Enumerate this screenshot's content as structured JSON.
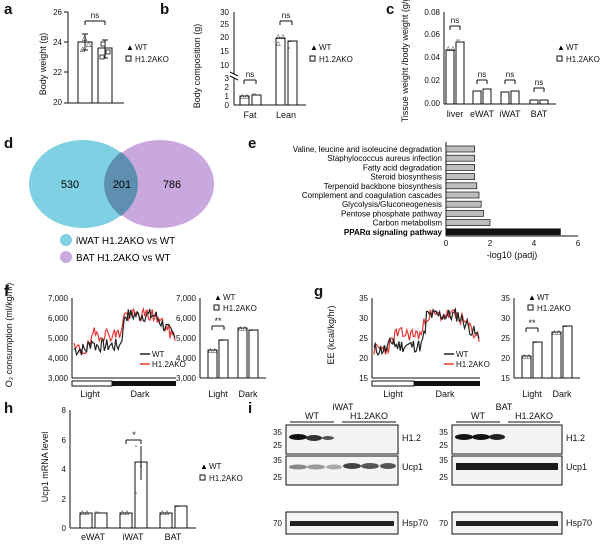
{
  "panels": {
    "a": "a",
    "b": "b",
    "c": "c",
    "d": "d",
    "e": "e",
    "f": "f",
    "g": "g",
    "h": "h",
    "i": "i"
  },
  "legend": {
    "wt": "WT",
    "ko": "H1.2AKO"
  },
  "sig": {
    "ns": "ns",
    "two_star": "**",
    "one_star": "*"
  },
  "chart_data": [
    {
      "id": "a",
      "type": "bar",
      "ylabel": "Body weight (g)",
      "ylim": [
        20,
        26
      ],
      "yticks": [
        "20",
        "22",
        "24",
        "26"
      ],
      "categories": [
        "WT",
        "H1.2AKO"
      ],
      "values": [
        24.0,
        23.6
      ],
      "annotation": "ns"
    },
    {
      "id": "b",
      "type": "bar",
      "ylabel": "Body composition (g)",
      "yticks": [
        "0",
        "1",
        "2",
        "3",
        "10",
        "15",
        "20",
        "25",
        "30"
      ],
      "categories": [
        "Fat",
        "Lean"
      ],
      "series": [
        {
          "name": "WT",
          "values": [
            1.0,
            19.0
          ]
        },
        {
          "name": "H1.2AKO",
          "values": [
            1.1,
            18.0
          ]
        }
      ],
      "annotation": "ns"
    },
    {
      "id": "c",
      "type": "bar",
      "ylabel": "Tissue weight /body weight (g/g)",
      "ylim": [
        0,
        0.08
      ],
      "yticks": [
        "0.00",
        "0.02",
        "0.04",
        "0.06",
        "0.08"
      ],
      "categories": [
        "liver",
        "eWAT",
        "iWAT",
        "BAT"
      ],
      "series": [
        {
          "name": "WT",
          "values": [
            0.047,
            0.011,
            0.01,
            0.003
          ]
        },
        {
          "name": "H1.2AKO",
          "values": [
            0.054,
            0.013,
            0.011,
            0.003
          ]
        }
      ],
      "annotation": "ns"
    },
    {
      "id": "d",
      "type": "venn",
      "sets": [
        {
          "label": "iWAT H1.2AKO vs WT",
          "only": "530",
          "color": "#7fd0e3"
        },
        {
          "label": "BAT H1.2AKO vs WT",
          "only": "786",
          "color": "#c9a9dd"
        }
      ],
      "overlap": "201"
    },
    {
      "id": "e",
      "type": "bar",
      "xlabel": "-log10 (padj)",
      "xlim": [
        0,
        6
      ],
      "xticks": [
        "0",
        "2",
        "4",
        "6"
      ],
      "categories": [
        "Valine, leucine and isoleucine degradation",
        "Staphylococcus aureus infection",
        "Fatty acid degradation",
        "Steroid biosynthesis",
        "Terpenoid backbone biosynthesis",
        "Complement and coagulation cascades",
        "Glycolysis/Gluconeogenesis",
        "Pentose phosphate pathway",
        "Carbon metabolism",
        "PPARα signaling pathway"
      ],
      "values": [
        1.3,
        1.3,
        1.3,
        1.3,
        1.4,
        1.5,
        1.6,
        1.7,
        2.0,
        5.2
      ],
      "bold_index": 9
    },
    {
      "id": "f",
      "type": "line",
      "ylabel": "O₂ consumption (ml/kg/hr)",
      "ylim": [
        3000,
        7000
      ],
      "yticks": [
        "3,000",
        "4,000",
        "5,000",
        "6,000",
        "7,000"
      ],
      "phases": [
        "Light",
        "Dark"
      ],
      "bar_categories": [
        "Light",
        "Dark"
      ],
      "bar_series": [
        {
          "name": "WT",
          "values": [
            4400,
            5500
          ]
        },
        {
          "name": "H1.2AKO",
          "values": [
            4900,
            5400
          ]
        }
      ],
      "annotation": "**"
    },
    {
      "id": "g",
      "type": "line",
      "ylabel": "EE (kcal/kg/hr)",
      "ylim": [
        15,
        35
      ],
      "yticks": [
        "15",
        "20",
        "25",
        "30",
        "35"
      ],
      "phases": [
        "Light",
        "Dark"
      ],
      "bar_categories": [
        "Light",
        "Dark"
      ],
      "bar_series": [
        {
          "name": "WT",
          "values": [
            20.5,
            26.5
          ]
        },
        {
          "name": "H1.2AKO",
          "values": [
            24.0,
            28.0
          ]
        }
      ],
      "annotation": "**"
    },
    {
      "id": "h",
      "type": "bar",
      "ylabel": "Ucp1 mRNA level",
      "ylim": [
        0,
        8
      ],
      "yticks": [
        "0",
        "2",
        "4",
        "6",
        "8"
      ],
      "categories": [
        "eWAT",
        "iWAT",
        "BAT"
      ],
      "series": [
        {
          "name": "WT",
          "values": [
            1.0,
            1.0,
            1.0
          ]
        },
        {
          "name": "H1.2AKO",
          "values": [
            1.0,
            4.5,
            1.5
          ]
        }
      ],
      "annotation": "*"
    }
  ],
  "blots": {
    "iwat": {
      "title": "iWAT",
      "groups": [
        "WT",
        "H1.2AKO"
      ],
      "rows": [
        {
          "label": "H1.2",
          "markers": [
            "35",
            "25"
          ]
        },
        {
          "label": "Ucp1",
          "markers": [
            "35",
            "25"
          ]
        },
        {
          "label": "Hsp70",
          "markers": [
            "70"
          ]
        }
      ]
    },
    "bat": {
      "title": "BAT",
      "groups": [
        "WT",
        "H1.2AKO"
      ],
      "rows": [
        {
          "label": "H1.2",
          "markers": [
            "35",
            "25"
          ]
        },
        {
          "label": "Ucp1",
          "markers": [
            "35",
            "25"
          ]
        },
        {
          "label": "Hsp70",
          "markers": [
            "70"
          ]
        }
      ]
    }
  }
}
